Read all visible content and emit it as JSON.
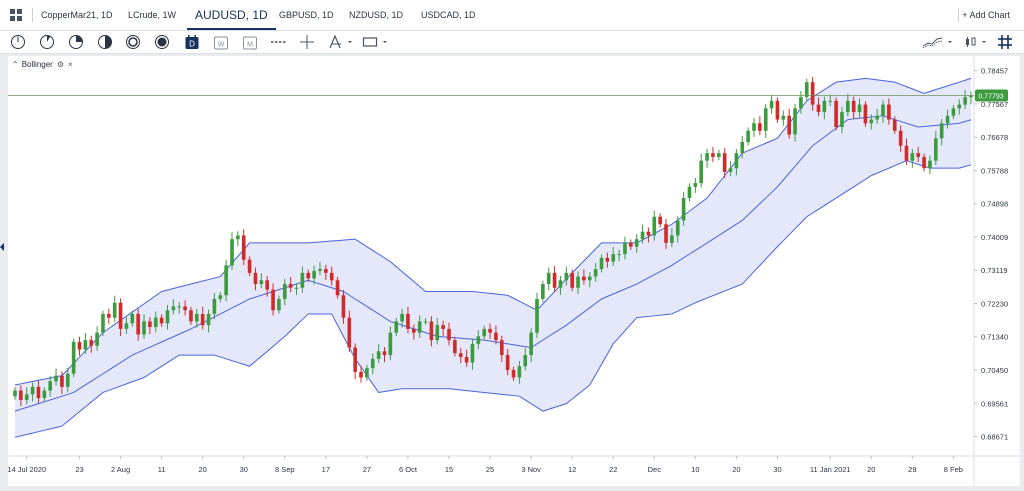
{
  "tabs": [
    {
      "label": "CopperMar21, 1D",
      "active": false
    },
    {
      "label": "LCrude, 1W",
      "active": false
    },
    {
      "label": "AUDUSD, 1D",
      "active": true
    },
    {
      "label": "GBPUSD, 1D",
      "active": false
    },
    {
      "label": "NZDUSD, 1D",
      "active": false
    },
    {
      "label": "USDCAD, 1D",
      "active": false
    }
  ],
  "add_chart_label": "+ Add Chart",
  "toolbar_icons": [
    "minute-icon",
    "5-minute-icon",
    "15-minute-icon",
    "30-minute-icon",
    "hour-icon",
    "4-hour-icon",
    "day-icon",
    "week-icon",
    "month-icon",
    "line-tool-icon",
    "crosshair-icon",
    "fibonacci-icon",
    "rectangle-icon",
    "chart-type-icon",
    "candle-type-icon",
    "grid-layout-icon"
  ],
  "timeframe_letters": {
    "day": "D",
    "week": "W",
    "month": "M"
  },
  "indicator": {
    "name": "Bollinger",
    "close": "×"
  },
  "colors": {
    "up": "#3d9b3f",
    "down": "#d02b2b",
    "band": "#4a63d8",
    "band_fill": "#e5e8fb",
    "price_line": "#6e8f5a",
    "price_tag": "#3d9b3f",
    "accent": "#17305c"
  },
  "chart_data": {
    "type": "candlestick",
    "symbol": "AUDUSD",
    "interval": "1D",
    "indicator": "Bollinger",
    "last_price": "0.77793",
    "ylim": [
      0.6815,
      0.7885
    ],
    "y_ticks": [
      "0.78457",
      "0.77567",
      "0.76678",
      "0.75788",
      "0.74898",
      "0.74009",
      "0.73119",
      "0.72230",
      "0.71340",
      "0.70450",
      "0.69561",
      "0.68671"
    ],
    "x_ticks": [
      "14 Jul 2020",
      "23",
      "2 Aug",
      "11",
      "20",
      "30",
      "8 Sep",
      "17",
      "27",
      "6 Oct",
      "15",
      "25",
      "3 Nov",
      "12",
      "22",
      "Dec",
      "10",
      "20",
      "30",
      "11 Jan 2021",
      "20",
      "29",
      "8 Feb"
    ],
    "x_tick_index": [
      2,
      11,
      18,
      25,
      32,
      39,
      46,
      53,
      60,
      67,
      74,
      81,
      88,
      95,
      102,
      109,
      116,
      123,
      130,
      139,
      146,
      153,
      160
    ],
    "closes": [
      0.699,
      0.6965,
      0.698,
      0.7,
      0.697,
      0.699,
      0.7015,
      0.703,
      0.7,
      0.7035,
      0.712,
      0.71,
      0.7125,
      0.711,
      0.7145,
      0.7195,
      0.7185,
      0.7225,
      0.7155,
      0.717,
      0.7195,
      0.714,
      0.7175,
      0.716,
      0.7185,
      0.717,
      0.7205,
      0.7215,
      0.7215,
      0.7205,
      0.7175,
      0.7195,
      0.7165,
      0.7195,
      0.7235,
      0.7245,
      0.7325,
      0.7395,
      0.7405,
      0.734,
      0.7305,
      0.7275,
      0.7285,
      0.726,
      0.7205,
      0.7235,
      0.7275,
      0.7265,
      0.7265,
      0.7305,
      0.729,
      0.731,
      0.7315,
      0.7305,
      0.7285,
      0.7245,
      0.7185,
      0.7105,
      0.704,
      0.7025,
      0.705,
      0.7075,
      0.7095,
      0.7085,
      0.7145,
      0.7175,
      0.7195,
      0.7155,
      0.7145,
      0.7175,
      0.7175,
      0.7125,
      0.7165,
      0.7155,
      0.7125,
      0.709,
      0.708,
      0.7065,
      0.7115,
      0.7135,
      0.7155,
      0.7145,
      0.7125,
      0.7085,
      0.7045,
      0.7025,
      0.7055,
      0.7085,
      0.7145,
      0.7235,
      0.7275,
      0.7305,
      0.7265,
      0.7285,
      0.7305,
      0.7265,
      0.7295,
      0.7285,
      0.7295,
      0.7315,
      0.7345,
      0.7335,
      0.7355,
      0.7355,
      0.7385,
      0.7375,
      0.7395,
      0.7415,
      0.7405,
      0.7455,
      0.7435,
      0.7385,
      0.7405,
      0.7445,
      0.7505,
      0.7535,
      0.7545,
      0.7605,
      0.7625,
      0.7615,
      0.7625,
      0.7575,
      0.7585,
      0.7625,
      0.7655,
      0.7685,
      0.7705,
      0.7685,
      0.7745,
      0.7765,
      0.7715,
      0.7725,
      0.7675,
      0.7745,
      0.7775,
      0.7815,
      0.7755,
      0.7735,
      0.7765,
      0.7765,
      0.7695,
      0.7735,
      0.7765,
      0.7735,
      0.7755,
      0.7705,
      0.7715,
      0.7725,
      0.7755,
      0.7715,
      0.7685,
      0.7645,
      0.7605,
      0.7625,
      0.7615,
      0.7585,
      0.7605,
      0.7665,
      0.7705,
      0.7725,
      0.7745,
      0.7755,
      0.7775,
      0.7779
    ],
    "bollinger_upper": [
      [
        0,
        0.7005
      ],
      [
        8,
        0.703
      ],
      [
        15,
        0.7145
      ],
      [
        25,
        0.7255
      ],
      [
        35,
        0.7295
      ],
      [
        40,
        0.7385
      ],
      [
        50,
        0.7385
      ],
      [
        58,
        0.7395
      ],
      [
        64,
        0.7335
      ],
      [
        70,
        0.7255
      ],
      [
        78,
        0.7255
      ],
      [
        84,
        0.7245
      ],
      [
        89,
        0.7205
      ],
      [
        95,
        0.7305
      ],
      [
        100,
        0.7385
      ],
      [
        106,
        0.7385
      ],
      [
        112,
        0.7435
      ],
      [
        118,
        0.7505
      ],
      [
        124,
        0.7625
      ],
      [
        130,
        0.7665
      ],
      [
        135,
        0.7765
      ],
      [
        140,
        0.7815
      ],
      [
        145,
        0.7825
      ],
      [
        150,
        0.7815
      ],
      [
        155,
        0.7785
      ],
      [
        161,
        0.7815
      ]
    ],
    "bollinger_middle": [
      [
        0,
        0.6935
      ],
      [
        10,
        0.6985
      ],
      [
        20,
        0.7085
      ],
      [
        30,
        0.7155
      ],
      [
        40,
        0.7235
      ],
      [
        50,
        0.7285
      ],
      [
        56,
        0.7255
      ],
      [
        64,
        0.7175
      ],
      [
        72,
        0.7135
      ],
      [
        80,
        0.7125
      ],
      [
        88,
        0.7105
      ],
      [
        94,
        0.7165
      ],
      [
        100,
        0.7235
      ],
      [
        106,
        0.7275
      ],
      [
        112,
        0.7325
      ],
      [
        118,
        0.7385
      ],
      [
        124,
        0.7445
      ],
      [
        130,
        0.7535
      ],
      [
        136,
        0.7645
      ],
      [
        142,
        0.7715
      ],
      [
        148,
        0.7725
      ],
      [
        154,
        0.7695
      ],
      [
        161,
        0.7705
      ]
    ],
    "bollinger_lower": [
      [
        0,
        0.6865
      ],
      [
        8,
        0.6895
      ],
      [
        15,
        0.6985
      ],
      [
        22,
        0.7025
      ],
      [
        28,
        0.7085
      ],
      [
        34,
        0.7085
      ],
      [
        40,
        0.7055
      ],
      [
        46,
        0.7135
      ],
      [
        50,
        0.7195
      ],
      [
        54,
        0.7195
      ],
      [
        58,
        0.7075
      ],
      [
        62,
        0.6985
      ],
      [
        66,
        0.6995
      ],
      [
        74,
        0.6995
      ],
      [
        80,
        0.6985
      ],
      [
        86,
        0.6975
      ],
      [
        90,
        0.6935
      ],
      [
        94,
        0.6955
      ],
      [
        98,
        0.7005
      ],
      [
        102,
        0.7115
      ],
      [
        106,
        0.7185
      ],
      [
        112,
        0.7195
      ],
      [
        116,
        0.7225
      ],
      [
        124,
        0.7275
      ],
      [
        130,
        0.7375
      ],
      [
        135,
        0.7455
      ],
      [
        140,
        0.7505
      ],
      [
        146,
        0.7565
      ],
      [
        152,
        0.7605
      ],
      [
        156,
        0.7585
      ],
      [
        161,
        0.7585
      ]
    ]
  }
}
